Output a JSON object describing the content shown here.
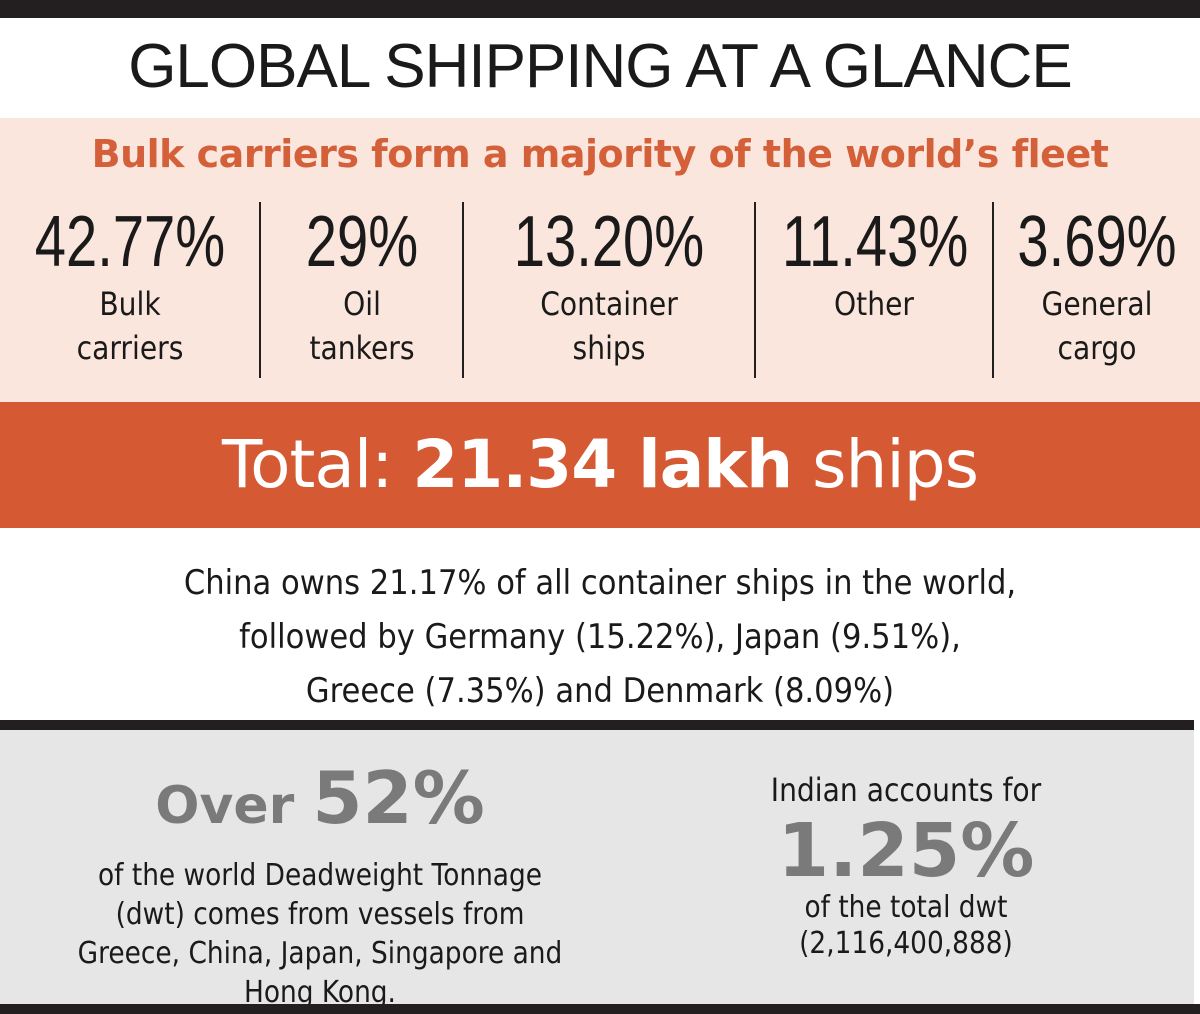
{
  "header": {
    "title": "GLOBAL SHIPPING AT A GLANCE"
  },
  "fleet": {
    "subtitle": "Bulk carriers form a majority of the world’s fleet",
    "stats": [
      {
        "value": "42.77%",
        "label": "Bulk\ncarriers"
      },
      {
        "value": "29%",
        "label": "Oil\ntankers"
      },
      {
        "value": "13.20%",
        "label": "Container\nships"
      },
      {
        "value": "11.43%",
        "label": "Other"
      },
      {
        "value": "3.69%",
        "label": "General\ncargo"
      }
    ]
  },
  "total": {
    "prefix": "Total: ",
    "value": "21.34 lakh",
    "suffix": " ships"
  },
  "containers": {
    "lines": [
      "China owns 21.17% of all container ships in the world,",
      "followed by Germany (15.22%), Japan (9.51%),",
      "Greece (7.35%) and Denmark (8.09%)"
    ]
  },
  "dwt": {
    "over_word": "Over ",
    "over_value": "52%",
    "description": [
      "of the world Deadweight Tonnage",
      "(dwt) comes from vessels from",
      "Greece, China, Japan, Singapore and",
      "Hong Kong."
    ]
  },
  "india": {
    "lead": "Indian accounts for",
    "value": "1.25%",
    "tail": "of the total dwt",
    "total": "(2,116,400,888)"
  },
  "colors": {
    "accent": "#d55a34",
    "subtitle": "#d4603a",
    "panel_pink": "#fbe6dd",
    "panel_grey": "#e7e6e6",
    "grey_text": "#7a7a7b",
    "dark": "#231f20"
  }
}
